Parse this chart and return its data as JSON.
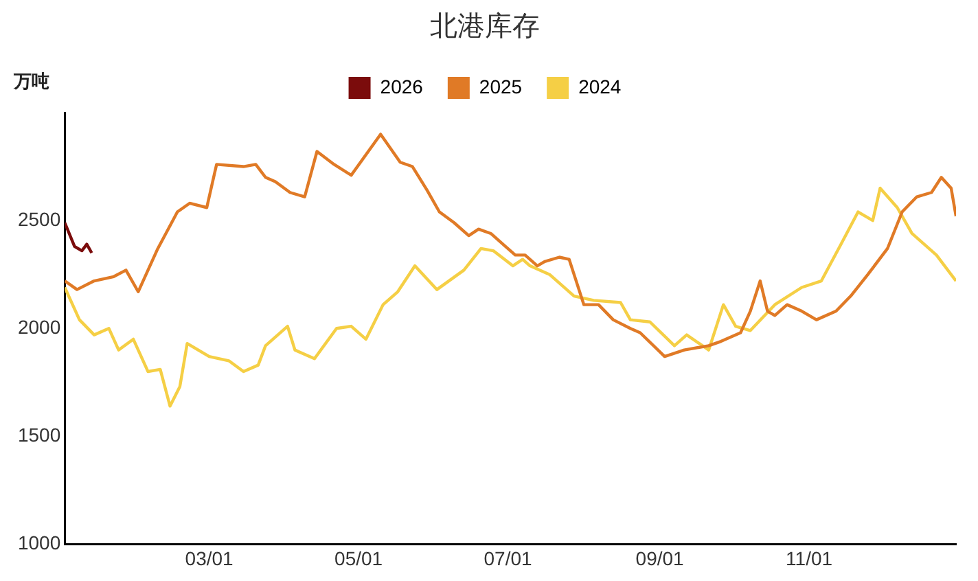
{
  "chart_data": {
    "type": "line",
    "title": "北港库存",
    "ylabel": "万吨",
    "legend": "top",
    "grid": false,
    "marker": "none",
    "xlim": [
      "--01-01",
      "--12-31"
    ],
    "xticks": [
      {
        "value": "--03-01",
        "label": "03/01"
      },
      {
        "value": "--05-01",
        "label": "05/01"
      },
      {
        "value": "--07-01",
        "label": "07/01"
      },
      {
        "value": "--09-01",
        "label": "09/01"
      },
      {
        "value": "--11-01",
        "label": "11/01"
      }
    ],
    "ylim": [
      1000,
      3000
    ],
    "yticks": [
      1000,
      1500,
      2000,
      2500
    ],
    "series": [
      {
        "name": "2026",
        "color": "#7b0c0c",
        "x": [
          "--01-01",
          "--01-05",
          "--01-08",
          "--01-10",
          "--01-12"
        ],
        "values": [
          2490,
          2380,
          2360,
          2390,
          2350
        ]
      },
      {
        "name": "2025",
        "color": "#e07a26",
        "x": [
          "--01-01",
          "--01-06",
          "--01-13",
          "--01-21",
          "--01-26",
          "--01-31",
          "--02-08",
          "--02-16",
          "--02-21",
          "--02-28",
          "--03-04",
          "--03-15",
          "--03-20",
          "--03-24",
          "--03-28",
          "--04-03",
          "--04-09",
          "--04-14",
          "--04-21",
          "--04-28",
          "--05-10",
          "--05-18",
          "--05-23",
          "--05-29",
          "--06-03",
          "--06-09",
          "--06-15",
          "--06-19",
          "--06-24",
          "--06-30",
          "--07-04",
          "--07-08",
          "--07-13",
          "--07-16",
          "--07-22",
          "--07-26",
          "--08-01",
          "--08-07",
          "--08-13",
          "--08-20",
          "--08-24",
          "--09-03",
          "--09-11",
          "--09-21",
          "--09-26",
          "--10-04",
          "--10-08",
          "--10-12",
          "--10-15",
          "--10-18",
          "--10-23",
          "--10-29",
          "--11-04",
          "--11-12",
          "--11-18",
          "--11-25",
          "--12-03",
          "--12-09",
          "--12-15",
          "--12-21",
          "--12-25",
          "--12-29",
          "--12-31"
        ],
        "values": [
          2220,
          2180,
          2220,
          2240,
          2270,
          2170,
          2370,
          2540,
          2580,
          2560,
          2760,
          2750,
          2760,
          2700,
          2680,
          2630,
          2610,
          2820,
          2760,
          2710,
          2900,
          2770,
          2750,
          2640,
          2540,
          2490,
          2430,
          2460,
          2440,
          2380,
          2340,
          2340,
          2290,
          2310,
          2330,
          2320,
          2110,
          2110,
          2040,
          2000,
          1980,
          1870,
          1900,
          1920,
          1940,
          1980,
          2080,
          2220,
          2080,
          2060,
          2110,
          2080,
          2040,
          2080,
          2150,
          2250,
          2370,
          2540,
          2610,
          2630,
          2700,
          2650,
          2520
        ]
      },
      {
        "name": "2024",
        "color": "#f5cf45",
        "x": [
          "--01-01",
          "--01-07",
          "--01-13",
          "--01-19",
          "--01-23",
          "--01-29",
          "--02-04",
          "--02-09",
          "--02-13",
          "--02-17",
          "--02-20",
          "--03-01",
          "--03-09",
          "--03-15",
          "--03-21",
          "--03-24",
          "--04-02",
          "--04-05",
          "--04-13",
          "--04-22",
          "--04-28",
          "--05-04",
          "--05-11",
          "--05-17",
          "--05-24",
          "--06-02",
          "--06-13",
          "--06-20",
          "--06-25",
          "--07-03",
          "--07-07",
          "--07-10",
          "--07-18",
          "--07-28",
          "--08-05",
          "--08-16",
          "--08-20",
          "--08-28",
          "--09-07",
          "--09-12",
          "--09-21",
          "--09-27",
          "--10-02",
          "--10-08",
          "--10-18",
          "--10-29",
          "--11-06",
          "--11-14",
          "--11-21",
          "--11-27",
          "--11-30",
          "--12-07",
          "--12-13",
          "--12-23",
          "--12-31"
        ],
        "values": [
          2190,
          2040,
          1970,
          2000,
          1900,
          1950,
          1800,
          1810,
          1640,
          1730,
          1930,
          1870,
          1850,
          1800,
          1830,
          1920,
          2010,
          1900,
          1860,
          2000,
          2010,
          1950,
          2110,
          2170,
          2290,
          2180,
          2270,
          2370,
          2360,
          2290,
          2320,
          2290,
          2250,
          2150,
          2130,
          2120,
          2040,
          2030,
          1920,
          1970,
          1900,
          2110,
          2010,
          1990,
          2110,
          2190,
          2220,
          2390,
          2540,
          2500,
          2650,
          2560,
          2440,
          2340,
          2220
        ]
      }
    ]
  }
}
